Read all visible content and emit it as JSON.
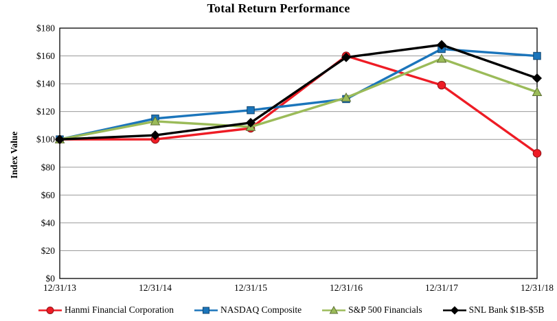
{
  "page": {
    "background": "#FFFFFF"
  },
  "chart_data": {
    "type": "line",
    "title": "Total Return Performance",
    "ylabel": "Index Value",
    "xlabel": "",
    "categories": [
      "12/31/13",
      "12/31/14",
      "12/31/15",
      "12/31/16",
      "12/31/17",
      "12/31/18"
    ],
    "y_ticks": [
      "$0",
      "$20",
      "$40",
      "$60",
      "$80",
      "$100",
      "$120",
      "$140",
      "$160",
      "$180"
    ],
    "ylim": [
      0,
      180
    ],
    "ytick_step": 20,
    "grid": "horizontal",
    "grid_color": "#999999",
    "axis_color": "#000000",
    "legend_position": "bottom",
    "series": [
      {
        "name": "Hanmi Financial Corporation",
        "color": "#EE1C25",
        "marker": "circle",
        "values": [
          100,
          100,
          108,
          160,
          139,
          90
        ]
      },
      {
        "name": "NASDAQ Composite",
        "color": "#1B75BB",
        "marker": "square",
        "values": [
          100,
          115,
          121,
          129,
          165,
          160
        ]
      },
      {
        "name": "S&P 500 Financials",
        "color": "#9BBB59",
        "marker": "triangle",
        "values": [
          100,
          113,
          109,
          130,
          158,
          134
        ]
      },
      {
        "name": "SNL Bank $1B-$5B",
        "color": "#000000",
        "marker": "diamond",
        "values": [
          100,
          103,
          112,
          159,
          168,
          144
        ]
      }
    ]
  }
}
